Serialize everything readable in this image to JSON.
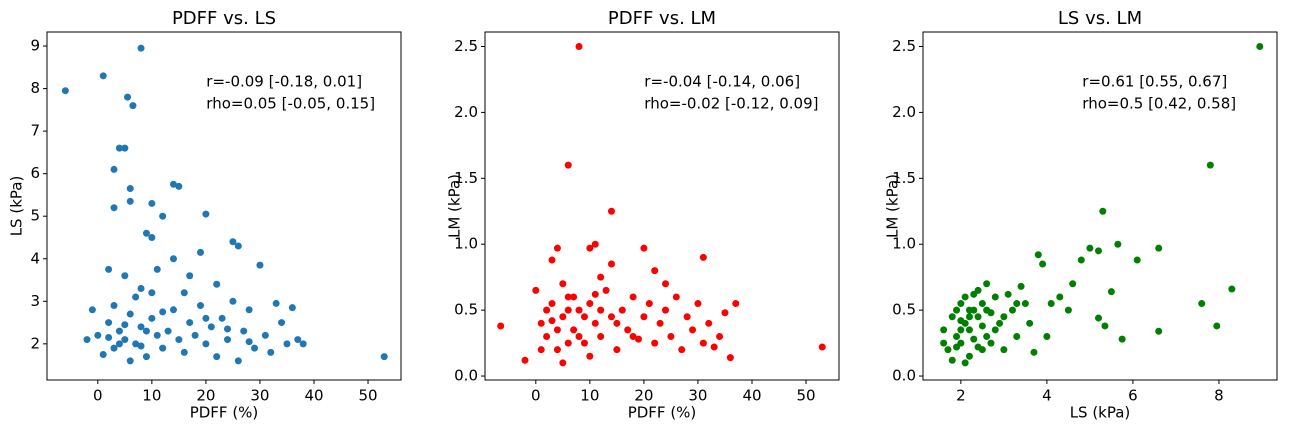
{
  "chart_data": [
    {
      "type": "scatter",
      "title": "PDFF vs. LS",
      "xlabel": "PDFF (%)",
      "ylabel": "LS (kPa)",
      "color": "#1f77b4",
      "annotations": [
        "r=-0.09 [-0.18, 0.01]",
        "rho=0.05 [-0.05, 0.15]"
      ],
      "xlim": [
        -9.4,
        56.1
      ],
      "ylim": [
        1.15,
        9.33
      ],
      "xticks": [
        0,
        10,
        20,
        30,
        40,
        50
      ],
      "yticks": [
        2,
        3,
        4,
        5,
        6,
        7,
        8,
        9
      ],
      "x": [
        -6,
        1,
        8,
        5.5,
        6.5,
        53,
        4,
        5,
        3,
        6,
        6,
        3,
        10,
        14,
        15,
        12,
        9,
        10,
        20,
        19,
        25,
        26,
        30,
        17,
        14,
        11,
        2,
        5,
        8,
        10,
        22,
        25,
        33,
        36,
        37,
        38,
        -2,
        -1,
        0,
        1,
        2,
        3,
        4,
        5,
        6,
        7,
        8,
        9,
        10,
        11,
        12,
        13,
        14,
        15,
        16,
        17,
        18,
        19,
        20,
        21,
        22,
        23,
        24,
        26,
        27,
        28,
        29,
        31,
        32,
        34,
        35,
        4,
        6,
        3,
        7,
        9,
        5,
        2,
        8,
        12,
        16,
        20,
        24,
        28
      ],
      "values": [
        7.95,
        8.3,
        8.95,
        7.8,
        7.6,
        1.7,
        6.6,
        6.6,
        6.1,
        5.65,
        5.35,
        5.2,
        5.3,
        5.75,
        5.7,
        5.0,
        4.6,
        4.5,
        5.05,
        4.15,
        4.4,
        4.3,
        3.85,
        3.6,
        4.0,
        3.75,
        3.75,
        3.6,
        3.3,
        3.2,
        3.4,
        3.0,
        2.95,
        2.85,
        2.1,
        2.0,
        2.1,
        2.8,
        2.2,
        1.75,
        2.5,
        1.9,
        2.3,
        2.1,
        2.7,
        2.0,
        2.4,
        1.7,
        2.6,
        2.2,
        1.9,
        2.3,
        2.8,
        2.1,
        1.8,
        2.5,
        2.2,
        2.9,
        2.0,
        2.4,
        1.7,
        2.6,
        2.1,
        1.6,
        2.3,
        2.8,
        1.9,
        2.2,
        1.8,
        2.5,
        2.0,
        2.0,
        1.6,
        2.9,
        3.1,
        2.3,
        2.45,
        2.15,
        1.95,
        2.75,
        3.2,
        2.6,
        2.35,
        2.05
      ]
    },
    {
      "type": "scatter",
      "title": "PDFF vs. LM",
      "xlabel": "PDFF (%)",
      "ylabel": "LM (kPa)",
      "color": "#ff0000",
      "annotations": [
        "r=-0.04 [-0.14, 0.06]",
        "rho=-0.02 [-0.12, 0.09]"
      ],
      "xlim": [
        -9.4,
        56.1
      ],
      "ylim": [
        -0.03,
        2.61
      ],
      "xticks": [
        0,
        10,
        20,
        30,
        40,
        50
      ],
      "yticks": [
        {
          "value": 0,
          "label": "0.0"
        },
        0.5,
        {
          "value": 1,
          "label": "1.0"
        },
        1.5,
        {
          "value": 2,
          "label": "2.0"
        },
        2.5
      ],
      "x": [
        8,
        6,
        14,
        -6.5,
        53,
        11,
        10,
        20,
        4,
        31,
        3,
        14,
        22,
        12,
        -2,
        5,
        36,
        37,
        35,
        34,
        0,
        1,
        2,
        3,
        4,
        5,
        6,
        7,
        8,
        9,
        10,
        11,
        12,
        13,
        14,
        15,
        16,
        17,
        18,
        19,
        20,
        21,
        22,
        23,
        24,
        25,
        26,
        27,
        28,
        29,
        30,
        31,
        32,
        33,
        1,
        2,
        4,
        6,
        7,
        8,
        9,
        10,
        12,
        15,
        18,
        24,
        5,
        3,
        6,
        11
      ],
      "values": [
        2.5,
        1.6,
        1.25,
        0.38,
        0.22,
        1.0,
        0.97,
        0.97,
        0.97,
        0.9,
        0.88,
        0.85,
        0.8,
        0.75,
        0.12,
        0.1,
        0.14,
        0.55,
        0.48,
        0.3,
        0.65,
        0.4,
        0.3,
        0.55,
        0.2,
        0.45,
        0.6,
        0.35,
        0.5,
        0.25,
        0.55,
        0.4,
        0.3,
        0.65,
        0.45,
        0.2,
        0.5,
        0.35,
        0.6,
        0.28,
        0.45,
        0.55,
        0.25,
        0.4,
        0.5,
        0.3,
        0.6,
        0.2,
        0.45,
        0.35,
        0.55,
        0.25,
        0.4,
        0.22,
        0.2,
        0.5,
        0.35,
        0.25,
        0.6,
        0.3,
        0.45,
        0.15,
        0.5,
        0.4,
        0.3,
        0.7,
        0.7,
        0.42,
        0.5,
        0.62
      ]
    },
    {
      "type": "scatter",
      "title": "LS vs. LM",
      "xlabel": "LS (kPa)",
      "ylabel": "LM (kPa)",
      "color": "#008000",
      "annotations": [
        "r=0.61 [0.55, 0.67]",
        "rho=0.5 [0.42, 0.58]"
      ],
      "xlim": [
        1.12,
        9.35
      ],
      "ylim": [
        -0.03,
        2.61
      ],
      "xticks": [
        2,
        4,
        6,
        8
      ],
      "yticks": [
        {
          "value": 0,
          "label": "0.0"
        },
        0.5,
        {
          "value": 1,
          "label": "1.0"
        },
        1.5,
        {
          "value": 2,
          "label": "2.0"
        },
        2.5
      ],
      "x": [
        8.95,
        7.8,
        5.3,
        5.65,
        5.0,
        6.6,
        5.2,
        6.1,
        4.8,
        3.8,
        3.9,
        8.3,
        7.6,
        7.95,
        6.6,
        5.75,
        5.5,
        5.2,
        5.35,
        4.6,
        4.3,
        4.1,
        3.6,
        3.3,
        3.0,
        1.6,
        1.7,
        1.8,
        1.9,
        2.0,
        2.0,
        2.1,
        2.1,
        2.2,
        2.2,
        2.3,
        2.3,
        2.4,
        2.4,
        2.5,
        2.5,
        2.6,
        2.6,
        2.7,
        2.8,
        2.9,
        3.1,
        3.2,
        3.4,
        3.5,
        1.9,
        2.0,
        2.2,
        2.3,
        2.5,
        2.7,
        3.0,
        3.7,
        4.0,
        4.5,
        1.6,
        1.8,
        2.1,
        2.4,
        2.8,
        3.3,
        2.6,
        2.2,
        2.0,
        1.9
      ],
      "values": [
        2.5,
        1.6,
        1.25,
        1.0,
        0.97,
        0.97,
        0.95,
        0.88,
        0.88,
        0.92,
        0.85,
        0.66,
        0.55,
        0.38,
        0.34,
        0.28,
        0.64,
        0.44,
        0.38,
        0.7,
        0.6,
        0.55,
        0.4,
        0.3,
        0.2,
        0.35,
        0.2,
        0.45,
        0.3,
        0.55,
        0.25,
        0.4,
        0.6,
        0.35,
        0.15,
        0.5,
        0.28,
        0.45,
        0.65,
        0.38,
        0.55,
        0.3,
        0.7,
        0.48,
        0.6,
        0.4,
        0.62,
        0.5,
        0.68,
        0.55,
        0.5,
        0.42,
        0.5,
        0.62,
        0.2,
        0.25,
        0.45,
        0.18,
        0.3,
        0.5,
        0.25,
        0.12,
        0.1,
        0.22,
        0.35,
        0.55,
        0.5,
        0.45,
        0.35,
        0.22
      ]
    }
  ]
}
